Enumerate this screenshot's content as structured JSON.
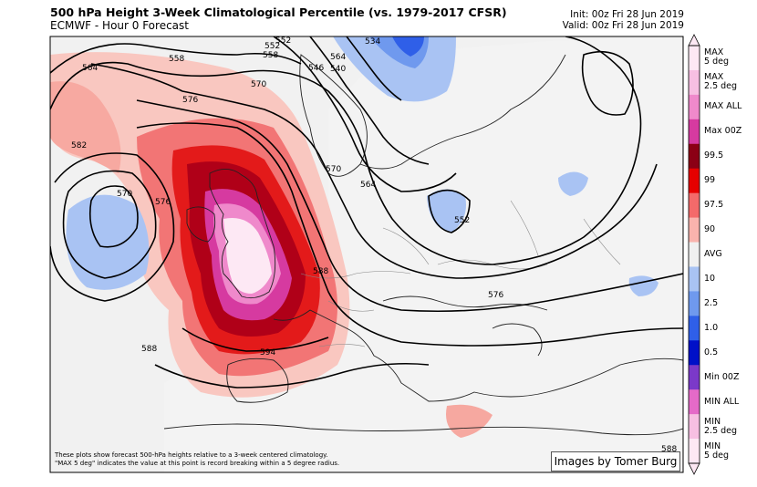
{
  "header": {
    "title": "500 hPa Height 3-Week Climatological Percentile (vs.  1979-2017 CFSR)",
    "subtitle": "ECMWF - Hour 0 Forecast",
    "init": "Init: 00z Fri 28 Jun 2019",
    "valid": "Valid: 00z Fri 28 Jun 2019"
  },
  "contour_labels": [
    "564",
    "570",
    "576",
    "582",
    "558",
    "552",
    "546",
    "540",
    "534",
    "552",
    "558",
    "564",
    "570",
    "552",
    "576",
    "588",
    "594",
    "588",
    "588",
    "570",
    "564",
    "576"
  ],
  "colorbar": {
    "labels": [
      "MAX\n5 deg",
      "MAX\n2.5 deg",
      "MAX ALL",
      "Max 00Z",
      "99.5",
      "99",
      "97.5",
      "90",
      "AVG",
      "10",
      "2.5",
      "1.0",
      "0.5",
      "Min 00Z",
      "MIN ALL",
      "MIN\n2.5 deg",
      "MIN\n5 deg"
    ],
    "colors": [
      "#fde8f4",
      "#f7bfe2",
      "#ef89cb",
      "#d63aa0",
      "#8b0015",
      "#e60000",
      "#f46a6a",
      "#f9b3ad",
      "#f0f0f0",
      "#a9c3f3",
      "#6f99ee",
      "#2f5fe8",
      "#0010c8",
      "#7b39c9",
      "#e56ac8",
      "#f7bfe2",
      "#fde8f4"
    ]
  },
  "footnote": {
    "line1": "These plots show forecast 500-hPa heights relative to a 3-week centered climatology.",
    "line2": "\"MAX 5 deg\" indicates the value at this point is record breaking within a 5 degree radius."
  },
  "credit": "Images by Tomer Burg"
}
